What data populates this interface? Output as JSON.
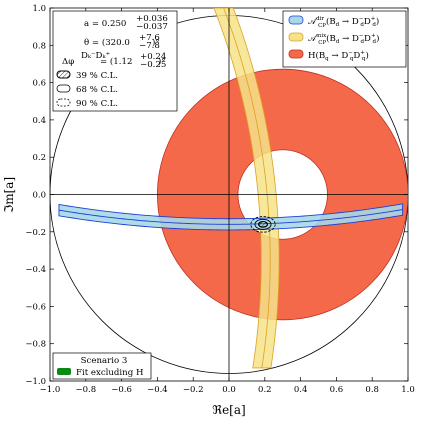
{
  "chart_data": {
    "type": "contour",
    "title": "",
    "xlabel": "ℜe[a]",
    "ylabel": "ℑm[a]",
    "xlim": [
      -1.0,
      1.0
    ],
    "ylim": [
      -1.0,
      1.0
    ],
    "xticks": [
      "−1.0",
      "−0.8",
      "−0.6",
      "−0.4",
      "−0.2",
      "0.0",
      "0.2",
      "0.4",
      "0.6",
      "0.8",
      "1.0"
    ],
    "yticks": [
      "−1.0",
      "−0.8",
      "−0.6",
      "−0.4",
      "−0.2",
      "0.0",
      "0.2",
      "0.4",
      "0.6",
      "0.8",
      "1.0"
    ],
    "grid": false,
    "unit_circle": {
      "cx": 0.0,
      "cy": 0.0,
      "r": 1.0
    },
    "crosshair": {
      "x": 0.0,
      "y": 0.0
    },
    "fit_result": {
      "a": "a = 0.250",
      "a_err_up": "+0.036",
      "a_err_down": "−0.037",
      "theta": "θ = (320.0",
      "theta_err_up": "+7.6",
      "theta_err_down": "−7.8",
      "theta_unit": ")°",
      "dphi_lhs": "Δφ",
      "dphi_sup": "Dₖ⁻Dₖ⁺",
      "dphi_rhs": " = (1.12",
      "dphi_err_up": "+0.24",
      "dphi_err_down": "−0.25",
      "dphi_unit": ")°"
    },
    "confidence_levels": [
      "39 % C.L.",
      "68 % C.L.",
      "90 % C.L."
    ],
    "series": [
      {
        "name": "A_CP^dir(B_d → D_d⁻ D_d⁺)",
        "legend_main": "𝒜",
        "legend_sup": "dir",
        "legend_sub": "CP",
        "legend_args": "(B",
        "legend_args2": "d",
        "legend_args3": " → D",
        "legend_args4": "−",
        "legend_args5": "d",
        "legend_args6": "D",
        "legend_args7": "+",
        "legend_args8": "d",
        "legend_args9": ")",
        "color": "#a6d8e8",
        "edge": "#1f3fd6",
        "band": {
          "inner_center": [
            0.0,
            5.8
          ],
          "inner_radius": 5.93,
          "outer_center": [
            0.0,
            5.8
          ],
          "outer_radius": 5.99,
          "center_radius": 5.96,
          "x_range": [
            -0.95,
            0.97
          ]
        }
      },
      {
        "name": "A_CP^mix(B_d → D_d⁻ D_d⁺)",
        "legend_sup": "mix",
        "color": "#f5e38a",
        "edge": "#e0a020",
        "band": {
          "center": [
            -3.4,
            -0.35
          ],
          "inner_radius": 3.58,
          "outer_radius": 3.68,
          "center_radius": 3.63,
          "y_range": [
            -0.93,
            1.0
          ]
        }
      },
      {
        "name": "H(B_q → D_q⁻ D_q⁺)",
        "legend_main": "H",
        "color": "#f4694a",
        "edge": "#c03020",
        "disk": {
          "center": [
            0.3,
            0.0
          ],
          "outer_radius": 0.7,
          "inner_radius": 0.25
        }
      }
    ],
    "fit_contours": {
      "center": [
        0.19,
        -0.16
      ],
      "ellipses": [
        {
          "level": "39 % C.L.",
          "rx": 0.025,
          "ry": 0.015
        },
        {
          "level": "68 % C.L.",
          "rx": 0.045,
          "ry": 0.027
        },
        {
          "level": "90 % C.L.",
          "rx": 0.068,
          "ry": 0.042
        }
      ]
    },
    "scenario_box": {
      "title": "Scenario 3",
      "entry": "Fit excluding H",
      "entry_color": "#0a8a12"
    }
  }
}
